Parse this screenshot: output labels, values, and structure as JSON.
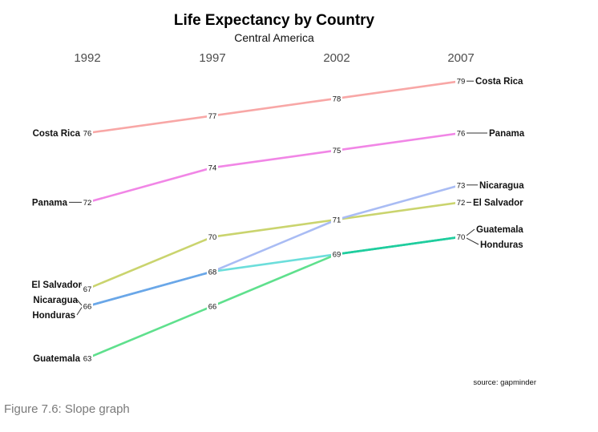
{
  "chart_data": {
    "type": "line",
    "title": "Life Expectancy by Country",
    "subtitle": "Central America",
    "x": [
      "1992",
      "1997",
      "2002",
      "2007"
    ],
    "series": [
      {
        "name": "Costa Rica",
        "values": [
          76,
          77,
          78,
          79
        ],
        "color": "#f8a7a6"
      },
      {
        "name": "Panama",
        "values": [
          72,
          74,
          75,
          76
        ],
        "color": "#f186e6"
      },
      {
        "name": "Nicaragua",
        "values": [
          66,
          68,
          71,
          73
        ],
        "color": "#a9bcf4"
      },
      {
        "name": "El Salvador",
        "values": [
          67,
          70,
          71,
          72
        ],
        "color": "#cad46e"
      },
      {
        "name": "Honduras",
        "values": [
          66,
          68,
          69,
          70
        ],
        "color": "#6cdedb"
      },
      {
        "name": "Guatemala",
        "values": [
          63,
          66,
          69,
          70
        ],
        "color": "#5fe08d"
      }
    ],
    "segment_colors": {
      "Nicaragua_Honduras_1992_1997": "#6aa7e8",
      "Honduras_Guatemala_2002_2007": "#1fcd9e"
    },
    "source": "source: gapminder",
    "grid": false,
    "legend": "none"
  },
  "caption": "Figure 7.6: Slope graph"
}
